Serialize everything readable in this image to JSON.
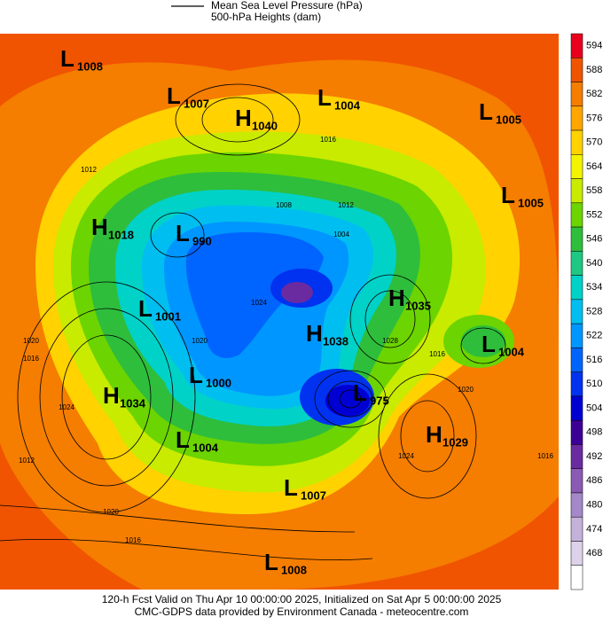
{
  "legend": {
    "line_label": "Mean Sea Level Pressure (hPa)",
    "fill_label": "500-hPa Heights (dam)"
  },
  "colorbar": {
    "levels": [
      594,
      588,
      582,
      576,
      570,
      564,
      558,
      552,
      546,
      540,
      534,
      528,
      522,
      516,
      510,
      504,
      498,
      492,
      486,
      480,
      474,
      468
    ],
    "colors": [
      "#e8001c",
      "#f05400",
      "#f57d00",
      "#ffa600",
      "#ffd200",
      "#f4f400",
      "#c8eb00",
      "#6cd400",
      "#2ebe3c",
      "#1ec882",
      "#00d2c8",
      "#00bef0",
      "#0096ff",
      "#0064ff",
      "#0032f0",
      "#0000d2",
      "#3c0096",
      "#6a2aa0",
      "#8a5ab4",
      "#a488c8",
      "#c4b2da",
      "#ddd2ea",
      "#ffffff"
    ]
  },
  "systems": [
    {
      "letter": "L",
      "value": "1008"
    },
    {
      "letter": "L",
      "value": "1007"
    },
    {
      "letter": "H",
      "value": "1040"
    },
    {
      "letter": "L",
      "value": "1004"
    },
    {
      "letter": "L",
      "value": "1005"
    },
    {
      "letter": "L",
      "value": "1005"
    },
    {
      "letter": "H",
      "value": "1018"
    },
    {
      "letter": "L",
      "value": "990"
    },
    {
      "letter": "L",
      "value": "1001"
    },
    {
      "letter": "H",
      "value": "1035"
    },
    {
      "letter": "H",
      "value": "1038"
    },
    {
      "letter": "L",
      "value": "1004"
    },
    {
      "letter": "H",
      "value": "1034"
    },
    {
      "letter": "L",
      "value": "1000"
    },
    {
      "letter": "L",
      "value": "975"
    },
    {
      "letter": "L",
      "value": "1004"
    },
    {
      "letter": "H",
      "value": "1029"
    },
    {
      "letter": "L",
      "value": "1007"
    },
    {
      "letter": "L",
      "value": "1008"
    }
  ],
  "contour_labels": [
    "1012",
    "1008",
    "1012",
    "1004",
    "1020",
    "1016",
    "1024",
    "1012",
    "1020",
    "1016",
    "1028",
    "1016",
    "1020",
    "1024",
    "1016",
    "1016",
    "1020",
    "1024"
  ],
  "footer": [
    "120-h Fcst Valid on Thu Apr 10 00:00:00 2025, Initialized on Sat Apr  5 00:00:00 2025",
    "CMC-GDPS data provided by Environment Canada - meteocentre.com"
  ]
}
